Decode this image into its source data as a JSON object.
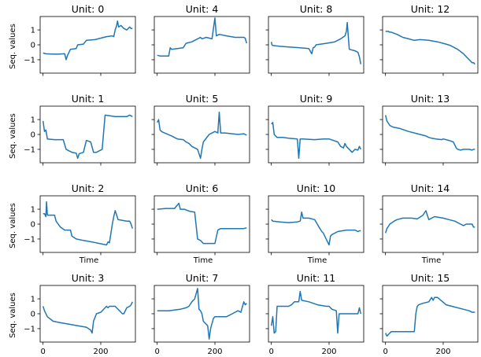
{
  "figure": {
    "ylabel": "Seq. values",
    "xlabel": "Time"
  },
  "chart_data": {
    "type": "line",
    "layout": "4x4 grid of subplots",
    "color": "#1f77b4",
    "xlim": [
      -10,
      320
    ],
    "ylim": [
      -1.9,
      1.9
    ],
    "xticks": [
      0,
      200
    ],
    "yticks": [
      -1,
      0,
      1
    ],
    "xlabel": "Time",
    "ylabel": "Seq. values",
    "grid": false,
    "panels": [
      {
        "title": "Unit: 0",
        "x": [
          0,
          10,
          30,
          50,
          75,
          80,
          85,
          95,
          115,
          120,
          140,
          150,
          180,
          200,
          220,
          240,
          245,
          250,
          255,
          258,
          262,
          270,
          280,
          290,
          300,
          305,
          310
        ],
        "y": [
          -0.55,
          -0.6,
          -0.62,
          -0.63,
          -0.6,
          -1.0,
          -0.7,
          -0.3,
          -0.25,
          0.0,
          0.05,
          0.3,
          0.35,
          0.45,
          0.55,
          0.6,
          0.55,
          1.0,
          1.3,
          1.6,
          1.2,
          1.3,
          1.1,
          1.0,
          1.2,
          1.1,
          1.1
        ]
      },
      {
        "title": "Unit: 1",
        "x": [
          0,
          5,
          10,
          15,
          40,
          70,
          80,
          100,
          115,
          120,
          125,
          140,
          150,
          165,
          175,
          185,
          205,
          210,
          215,
          250,
          270,
          290,
          300,
          305,
          310
        ],
        "y": [
          0.9,
          0.2,
          0.3,
          -0.3,
          -0.35,
          -0.35,
          -1.0,
          -1.2,
          -1.25,
          -1.6,
          -1.3,
          -1.2,
          -0.4,
          -0.5,
          -1.2,
          -1.2,
          -1.0,
          0.2,
          1.3,
          1.2,
          1.2,
          1.2,
          1.3,
          1.25,
          1.2
        ],
        "drawn_with_jumps": true
      },
      {
        "title": "Unit: 2",
        "x": [
          0,
          5,
          10,
          12,
          15,
          40,
          45,
          60,
          75,
          95,
          100,
          115,
          140,
          170,
          195,
          220,
          225,
          230,
          240,
          245,
          250,
          260,
          290,
          300,
          305,
          310
        ],
        "y": [
          0.7,
          0.7,
          0.5,
          1.5,
          0.6,
          0.6,
          0.2,
          -0.2,
          -0.4,
          -0.4,
          -0.8,
          -1.0,
          -1.1,
          -1.2,
          -1.3,
          -1.4,
          -1.2,
          -1.25,
          0.0,
          0.5,
          0.9,
          0.3,
          0.2,
          0.2,
          0.0,
          -0.3
        ],
        "drawn_with_jumps": true
      },
      {
        "title": "Unit: 3",
        "x": [
          0,
          5,
          15,
          35,
          60,
          90,
          120,
          150,
          165,
          170,
          175,
          185,
          200,
          215,
          220,
          225,
          230,
          250,
          275,
          280,
          290,
          300,
          305,
          310
        ],
        "y": [
          0.5,
          0.2,
          -0.2,
          -0.5,
          -0.6,
          -0.7,
          -0.8,
          -0.9,
          -1.1,
          -1.3,
          -0.5,
          0.0,
          0.1,
          0.4,
          0.5,
          0.4,
          0.5,
          0.5,
          0.0,
          0.0,
          0.4,
          0.5,
          0.6,
          0.8
        ]
      },
      {
        "title": "Unit: 4",
        "x": [
          0,
          10,
          40,
          45,
          50,
          90,
          100,
          120,
          130,
          140,
          150,
          155,
          170,
          190,
          200,
          205,
          215,
          240,
          270,
          285,
          300,
          305,
          310
        ],
        "y": [
          -0.7,
          -0.75,
          -0.75,
          -0.2,
          -0.3,
          -0.2,
          0.1,
          0.2,
          0.3,
          0.4,
          0.5,
          0.4,
          0.5,
          0.4,
          1.8,
          0.6,
          0.7,
          0.6,
          0.5,
          0.5,
          0.5,
          0.45,
          0.1
        ]
      },
      {
        "title": "Unit: 5",
        "x": [
          0,
          5,
          10,
          15,
          20,
          50,
          70,
          90,
          100,
          110,
          120,
          130,
          140,
          150,
          155,
          160,
          180,
          200,
          210,
          215,
          220,
          235,
          260,
          280,
          300,
          305,
          310
        ],
        "y": [
          0.8,
          1.0,
          0.3,
          0.2,
          0.15,
          -0.1,
          -0.3,
          -0.35,
          -0.5,
          -0.6,
          -0.8,
          -0.9,
          -1.0,
          -1.6,
          -1.0,
          -0.5,
          0.0,
          0.2,
          0.1,
          1.5,
          0.1,
          0.1,
          0.05,
          0.0,
          0.05,
          0.0,
          -0.05
        ]
      },
      {
        "title": "Unit: 6",
        "x": [
          0,
          30,
          60,
          75,
          80,
          85,
          95,
          100,
          115,
          130,
          140,
          150,
          155,
          160,
          180,
          200,
          210,
          220,
          250,
          280,
          300,
          310
        ],
        "y": [
          1.0,
          1.05,
          1.05,
          1.4,
          1.0,
          1.0,
          1.0,
          0.95,
          0.85,
          0.8,
          -1.0,
          -1.1,
          -1.2,
          -1.3,
          -1.3,
          -1.3,
          -0.4,
          -0.3,
          -0.3,
          -0.3,
          -0.3,
          -0.25
        ],
        "drawn_with_jumps": true
      },
      {
        "title": "Unit: 7",
        "x": [
          0,
          10,
          40,
          60,
          80,
          100,
          110,
          120,
          130,
          140,
          145,
          150,
          155,
          160,
          175,
          180,
          185,
          195,
          200,
          210,
          220,
          240,
          260,
          280,
          290,
          300,
          305,
          310
        ],
        "y": [
          0.2,
          0.2,
          0.2,
          0.25,
          0.3,
          0.4,
          0.5,
          0.8,
          1.0,
          1.7,
          0.3,
          0.2,
          0.0,
          -0.5,
          -0.8,
          -1.7,
          -1.0,
          -0.3,
          -0.2,
          -0.2,
          -0.2,
          -0.2,
          0.0,
          0.2,
          0.1,
          0.8,
          0.6,
          0.7
        ]
      },
      {
        "title": "Unit: 8",
        "x": [
          0,
          2,
          5,
          30,
          60,
          100,
          130,
          140,
          145,
          150,
          155,
          190,
          220,
          240,
          255,
          260,
          263,
          270,
          290,
          300,
          305,
          310
        ],
        "y": [
          0.2,
          0.0,
          -0.05,
          -0.1,
          -0.15,
          -0.2,
          -0.25,
          -0.6,
          -0.2,
          -0.15,
          0.0,
          0.1,
          0.2,
          0.4,
          0.6,
          0.9,
          1.5,
          -0.3,
          -0.4,
          -0.5,
          -0.8,
          -1.3
        ]
      },
      {
        "title": "Unit: 9",
        "x": [
          0,
          5,
          10,
          20,
          40,
          60,
          90,
          95,
          100,
          110,
          150,
          180,
          200,
          230,
          240,
          250,
          255,
          260,
          280,
          290,
          300,
          305,
          310
        ],
        "y": [
          0.7,
          0.8,
          0.0,
          -0.2,
          -0.2,
          -0.25,
          -0.3,
          -1.6,
          -0.3,
          -0.3,
          -0.35,
          -0.3,
          -0.3,
          -0.5,
          -0.8,
          -0.9,
          -0.6,
          -0.8,
          -1.2,
          -1.0,
          -1.05,
          -0.8,
          -1.0
        ]
      },
      {
        "title": "Unit: 10",
        "x": [
          0,
          5,
          30,
          60,
          90,
          100,
          105,
          110,
          130,
          150,
          165,
          175,
          180,
          190,
          200,
          205,
          210,
          230,
          260,
          290,
          300,
          305,
          310
        ],
        "y": [
          0.3,
          0.2,
          0.15,
          0.1,
          0.15,
          0.2,
          0.8,
          0.4,
          0.4,
          0.3,
          -0.2,
          -0.5,
          -0.6,
          -1.0,
          -1.4,
          -0.8,
          -0.7,
          -0.5,
          -0.4,
          -0.4,
          -0.5,
          -0.45,
          -0.45
        ]
      },
      {
        "title": "Unit: 11",
        "x": [
          0,
          5,
          10,
          15,
          20,
          25,
          60,
          70,
          80,
          95,
          100,
          105,
          130,
          160,
          190,
          200,
          210,
          225,
          230,
          235,
          240,
          280,
          300,
          305,
          310
        ],
        "y": [
          -0.8,
          -0.2,
          -1.3,
          -1.2,
          0.5,
          0.5,
          0.5,
          0.6,
          0.8,
          0.8,
          1.5,
          0.9,
          0.8,
          0.6,
          0.5,
          0.5,
          0.3,
          0.2,
          -1.3,
          0.0,
          0.0,
          0.0,
          0.0,
          0.4,
          0.0
        ],
        "drawn_with_jumps": true
      },
      {
        "title": "Unit: 12",
        "x": [
          0,
          10,
          15,
          20,
          40,
          60,
          80,
          100,
          120,
          150,
          180,
          200,
          210,
          225,
          250,
          270,
          280,
          290,
          300,
          305,
          310
        ],
        "y": [
          0.9,
          0.9,
          0.85,
          0.85,
          0.7,
          0.5,
          0.4,
          0.3,
          0.35,
          0.3,
          0.2,
          0.1,
          0.05,
          -0.05,
          -0.3,
          -0.6,
          -0.8,
          -1.0,
          -1.2,
          -1.2,
          -1.3
        ]
      },
      {
        "title": "Unit: 13",
        "x": [
          0,
          5,
          15,
          25,
          50,
          80,
          120,
          140,
          150,
          160,
          175,
          195,
          200,
          220,
          235,
          240,
          245,
          250,
          260,
          270,
          290,
          300,
          305,
          310
        ],
        "y": [
          1.3,
          0.9,
          0.6,
          0.5,
          0.4,
          0.2,
          0.0,
          -0.1,
          -0.2,
          -0.25,
          -0.3,
          -0.35,
          -0.3,
          -0.4,
          -0.5,
          -0.7,
          -0.9,
          -1.0,
          -1.05,
          -1.0,
          -1.0,
          -1.05,
          -1.0,
          -1.0
        ]
      },
      {
        "title": "Unit: 14",
        "x": [
          0,
          5,
          15,
          30,
          40,
          60,
          90,
          110,
          130,
          140,
          150,
          170,
          200,
          220,
          240,
          260,
          270,
          280,
          290,
          300,
          305,
          310
        ],
        "y": [
          -0.6,
          -0.3,
          0.0,
          0.2,
          0.3,
          0.4,
          0.4,
          0.35,
          0.6,
          0.9,
          0.3,
          0.5,
          0.4,
          0.3,
          0.2,
          0.0,
          -0.1,
          0.0,
          0.0,
          0.0,
          -0.2,
          -0.2
        ]
      },
      {
        "title": "Unit: 15",
        "x": [
          0,
          5,
          10,
          20,
          40,
          60,
          80,
          100,
          105,
          110,
          115,
          130,
          150,
          160,
          165,
          170,
          180,
          210,
          230,
          270,
          290,
          300,
          305,
          310
        ],
        "y": [
          -1.3,
          -1.5,
          -1.4,
          -1.2,
          -1.2,
          -1.2,
          -1.2,
          -1.2,
          0.0,
          0.5,
          0.6,
          0.7,
          0.8,
          1.1,
          0.9,
          1.1,
          1.1,
          0.6,
          0.5,
          0.3,
          0.2,
          0.1,
          0.1,
          0.1
        ],
        "drawn_with_jumps": true
      }
    ]
  }
}
